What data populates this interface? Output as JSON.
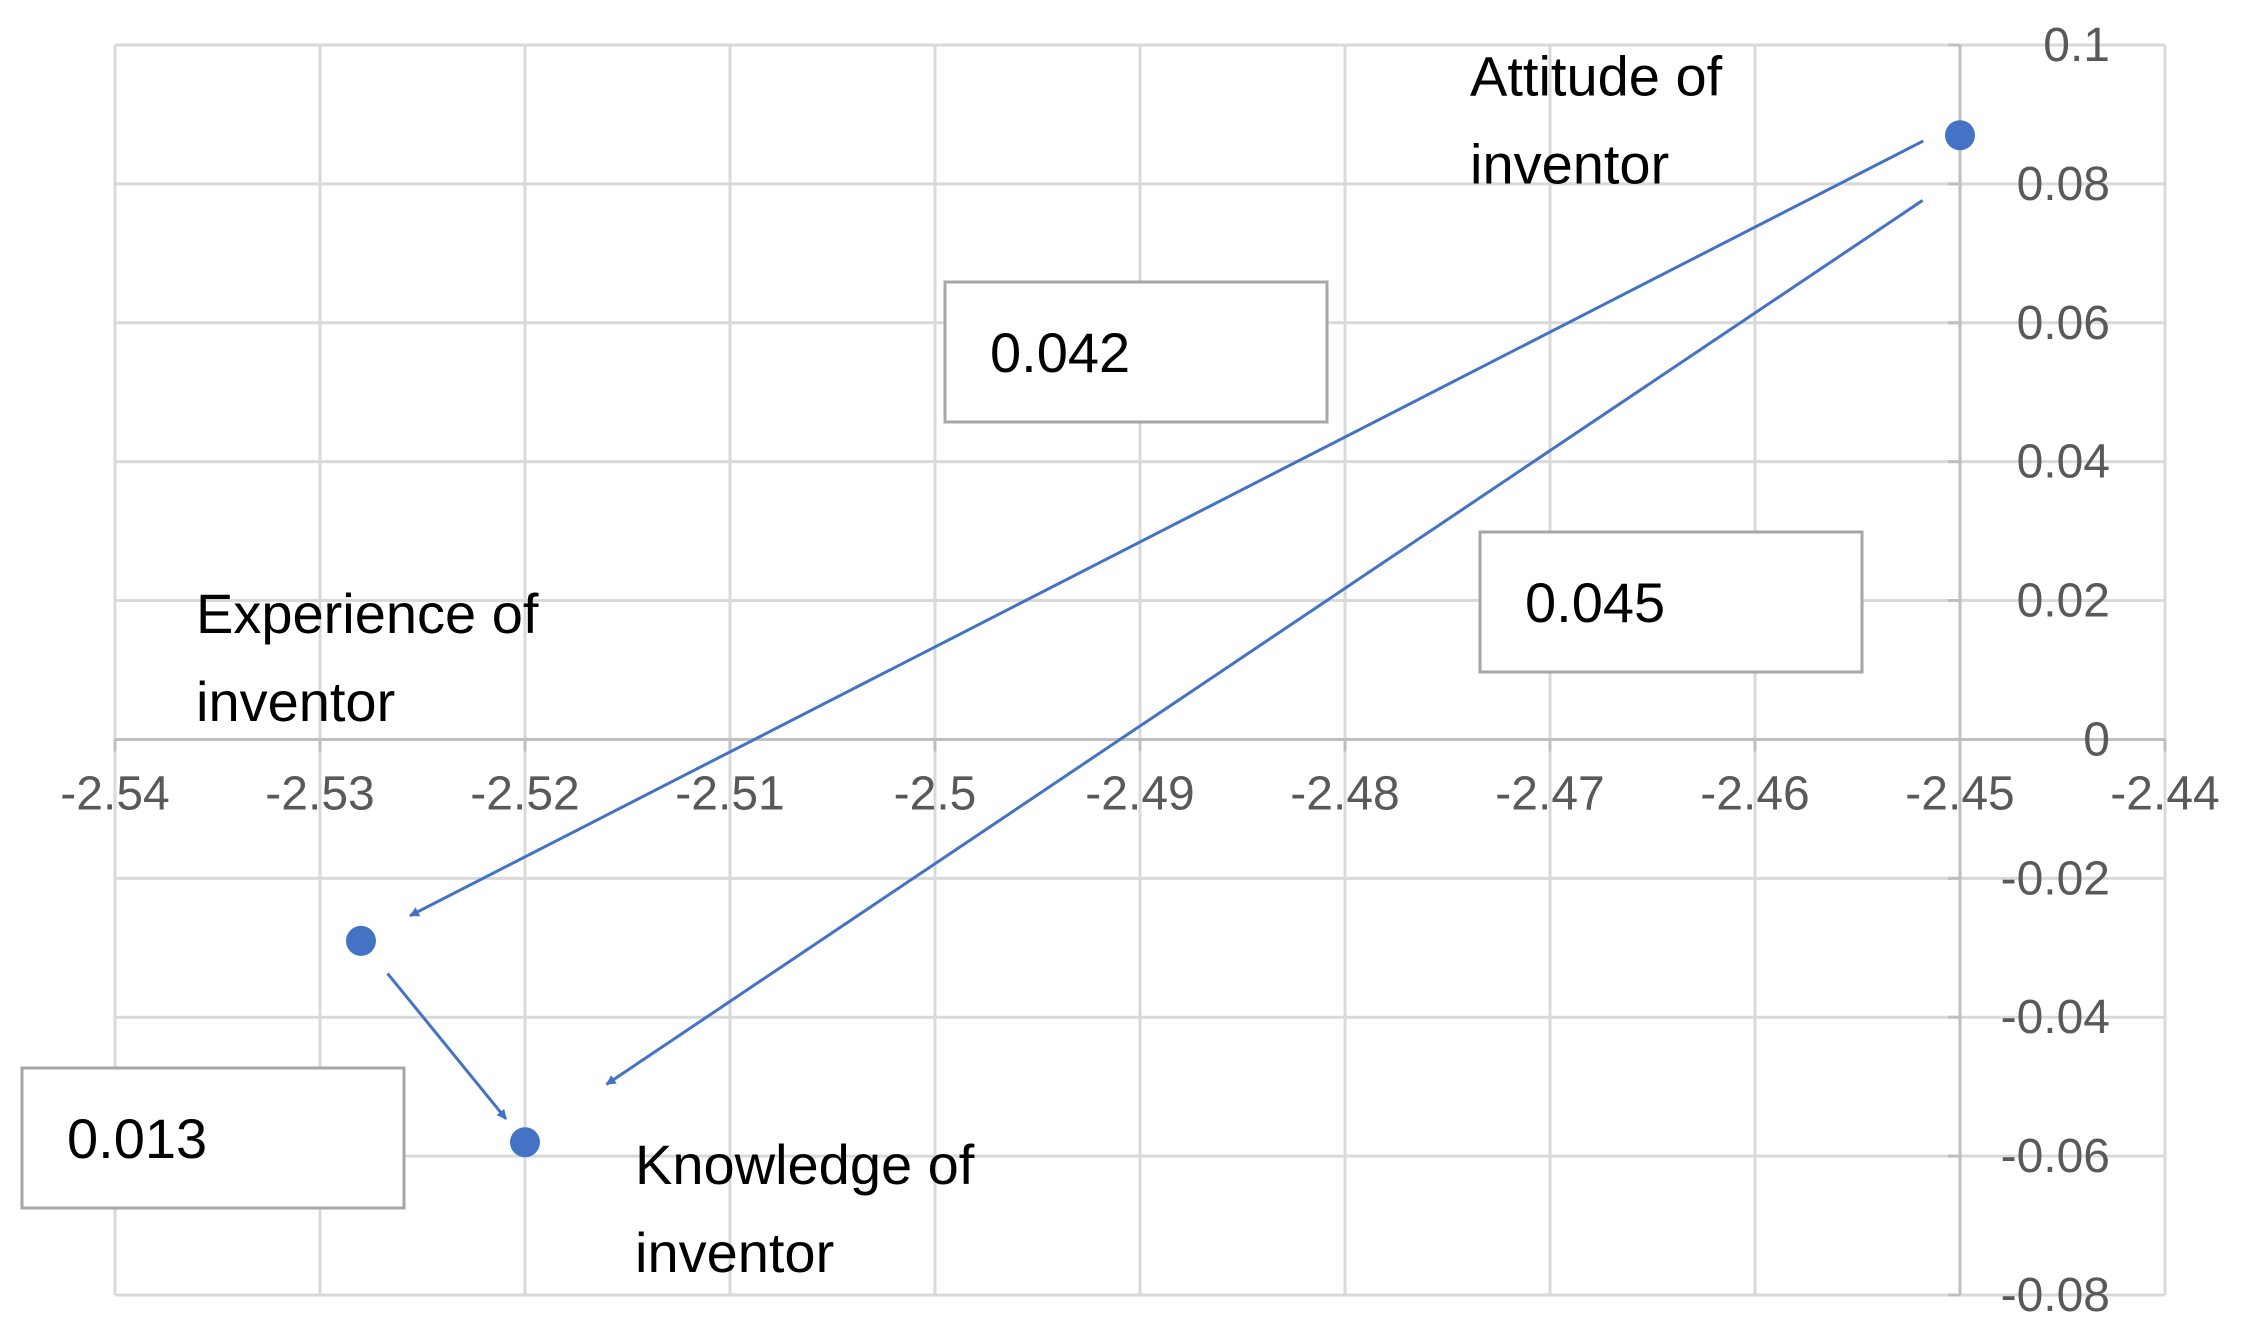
{
  "colors": {
    "series": "#4472c4",
    "grid": "#d9d9d9",
    "axis": "#bfbfbf",
    "tick_text": "#595959"
  },
  "chart_data": {
    "type": "scatter",
    "title": "",
    "xlabel": "",
    "ylabel": "",
    "xlim": [
      -2.54,
      -2.44
    ],
    "ylim": [
      -0.08,
      0.1
    ],
    "grid": true,
    "legend": "none",
    "x_ticks": [
      "-2.54",
      "-2.53",
      "-2.52",
      "-2.51",
      "-2.5",
      "-2.49",
      "-2.48",
      "-2.47",
      "-2.46",
      "-2.45",
      "-2.44"
    ],
    "y_ticks": [
      "0.1",
      "0.08",
      "0.06",
      "0.04",
      "0.02",
      "0",
      "-0.02",
      "-0.04",
      "-0.06",
      "-0.08"
    ],
    "points": [
      {
        "label": [
          "Attitude of",
          "inventor"
        ],
        "x": -2.45,
        "y": 0.087
      },
      {
        "label": [
          "Experience of",
          "inventor"
        ],
        "x": -2.528,
        "y": -0.029
      },
      {
        "label": [
          "Knowledge of",
          "inventor"
        ],
        "x": -2.52,
        "y": -0.058
      }
    ],
    "arrows": [
      {
        "from": 0,
        "to": 1,
        "value": "0.042"
      },
      {
        "from": 0,
        "to": 2,
        "value": "0.045"
      },
      {
        "from": 1,
        "to": 2,
        "value": "0.013"
      }
    ]
  }
}
